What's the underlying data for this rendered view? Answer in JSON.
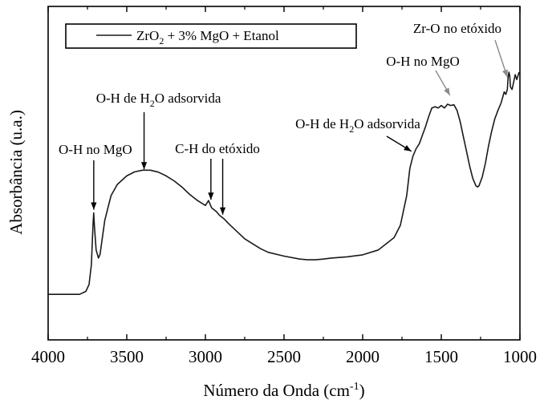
{
  "chart_data": {
    "type": "line",
    "title": "",
    "xlabel": "Número da Onda (cm-1)",
    "xlabel_main": "Número da Onda (cm",
    "xlabel_sup": "-1",
    "xlabel_close": ")",
    "ylabel": "Absorbância (u.a.)",
    "xlim": [
      4000,
      1000
    ],
    "x_reversed": true,
    "ylim": [
      0,
      1
    ],
    "y_ticks_labeled": false,
    "grid": false,
    "legend_position": "top-left",
    "xticks": [
      4000,
      3500,
      3000,
      2500,
      2000,
      1500,
      1000
    ],
    "xtick_labels": [
      "4000",
      "3500",
      "3000",
      "2500",
      "2000",
      "1500",
      "1000"
    ],
    "series": [
      {
        "name": "ZrO2 + 3% MgO + Etanol",
        "legend": {
          "pre": "ZrO",
          "sub": "2",
          "post": " + 3% MgO + Etanol"
        },
        "color": "#1a1a1a",
        "x": [
          4000,
          3800,
          3760,
          3740,
          3725,
          3715,
          3710,
          3705,
          3695,
          3680,
          3670,
          3655,
          3640,
          3600,
          3560,
          3500,
          3450,
          3400,
          3350,
          3300,
          3250,
          3200,
          3150,
          3100,
          3050,
          3000,
          2980,
          2960,
          2950,
          2930,
          2910,
          2880,
          2850,
          2800,
          2750,
          2700,
          2650,
          2600,
          2500,
          2400,
          2350,
          2300,
          2250,
          2200,
          2100,
          2000,
          1900,
          1800,
          1760,
          1720,
          1700,
          1680,
          1660,
          1640,
          1620,
          1600,
          1580,
          1560,
          1540,
          1520,
          1500,
          1480,
          1460,
          1440,
          1420,
          1400,
          1380,
          1360,
          1340,
          1320,
          1300,
          1280,
          1270,
          1260,
          1240,
          1220,
          1200,
          1180,
          1160,
          1140,
          1120,
          1100,
          1090,
          1080,
          1075,
          1070,
          1065,
          1060,
          1050,
          1040,
          1030,
          1020,
          1010,
          1005
        ],
        "y": [
          0.1,
          0.1,
          0.112,
          0.14,
          0.22,
          0.38,
          0.43,
          0.37,
          0.28,
          0.247,
          0.262,
          0.33,
          0.4,
          0.5,
          0.545,
          0.58,
          0.596,
          0.603,
          0.603,
          0.595,
          0.58,
          0.56,
          0.535,
          0.505,
          0.48,
          0.46,
          0.48,
          0.45,
          0.445,
          0.435,
          0.42,
          0.405,
          0.385,
          0.355,
          0.325,
          0.305,
          0.285,
          0.27,
          0.255,
          0.243,
          0.24,
          0.24,
          0.243,
          0.247,
          0.252,
          0.26,
          0.28,
          0.33,
          0.38,
          0.5,
          0.61,
          0.66,
          0.69,
          0.71,
          0.745,
          0.78,
          0.82,
          0.855,
          0.86,
          0.855,
          0.865,
          0.855,
          0.87,
          0.865,
          0.868,
          0.845,
          0.8,
          0.74,
          0.68,
          0.62,
          0.57,
          0.54,
          0.535,
          0.54,
          0.575,
          0.63,
          0.7,
          0.76,
          0.81,
          0.845,
          0.875,
          0.92,
          0.91,
          0.93,
          0.98,
          1.0,
          0.985,
          0.94,
          0.93,
          0.96,
          0.99,
          0.97,
          0.99,
          1.0
        ]
      }
    ],
    "annotations": [
      {
        "id": "ann-oh-mgo-low",
        "text": "O-H no MgO",
        "x": 3710,
        "y": 0.43
      },
      {
        "id": "ann-oh-h2o-low",
        "text": "O-H de H2O adsorvida",
        "pre": "O-H de H",
        "sub": "2",
        "post": "O adsorvida",
        "x": 3390,
        "y": 0.6
      },
      {
        "id": "ann-ch-etoxido",
        "text": "C-H do etóxido",
        "targets": [
          {
            "x": 2965,
            "y": 0.47
          },
          {
            "x": 2890,
            "y": 0.41
          }
        ]
      },
      {
        "id": "ann-oh-h2o-high",
        "text": "O-H de H2O adsorvida",
        "pre": "O-H de H",
        "sub": "2",
        "post": "O adsorvida",
        "x": 1670,
        "y": 0.66
      },
      {
        "id": "ann-oh-mgo-high",
        "text": "O-H no MgO",
        "x": 1450,
        "y": 0.88
      },
      {
        "id": "ann-zro-etoxido",
        "text": "Zr-O no etóxido",
        "x": 1065,
        "y": 0.97
      }
    ]
  }
}
